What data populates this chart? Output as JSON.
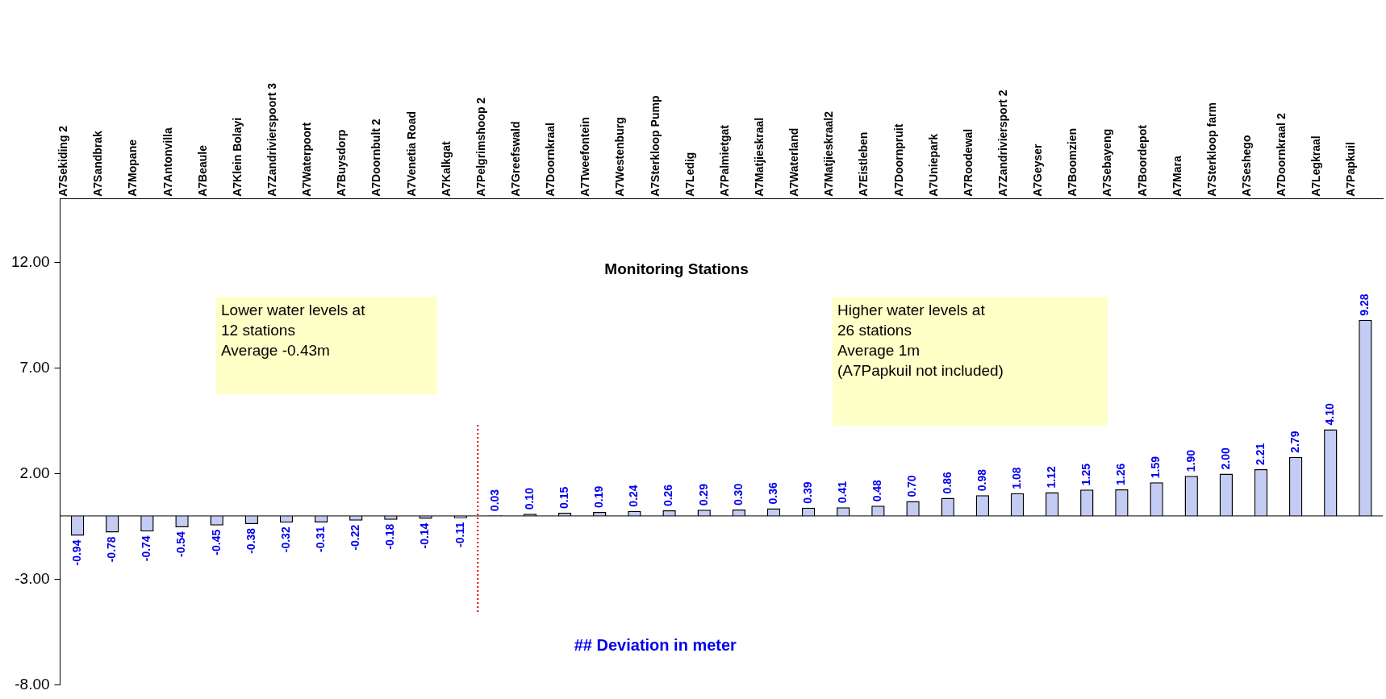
{
  "chart_data": {
    "type": "bar",
    "title": "Monitoring Stations",
    "categories": [
      "A7Sekiding 2",
      "A7Sandbrak",
      "A7Mopane",
      "A7Antonvilla",
      "A7Beaule",
      "A7Klein Bolayi",
      "A7Zandrivierspoort 3",
      "A7Waterpoort",
      "A7Buysdorp",
      "A7Doornbult 2",
      "A7Venetia Road",
      "A7Kalkgat",
      "A7Pelgrimshoop 2",
      "A7Greefswald",
      "A7Doornkraal",
      "A7Tweefontein",
      "A7Westenburg",
      "A7Sterkloop Pump",
      "A7Ledig",
      "A7Palmietgat",
      "A7Matjieskraal",
      "A7Waterland",
      "A7Matjieskraal2",
      "A7Eistleben",
      "A7Doornpruit",
      "A7Uniepark",
      "A7Roodewal",
      "A7Zandriviersport 2",
      "A7Geyser",
      "A7Boomzien",
      "A7Sebayeng",
      "A7Boordepot",
      "A7Mara",
      "A7Sterkloop farm",
      "A7Seshego",
      "A7Doornkraal 2",
      "A7Legkraal",
      "A7Papkuil"
    ],
    "values": [
      -0.94,
      -0.78,
      -0.74,
      -0.54,
      -0.45,
      -0.38,
      -0.32,
      -0.31,
      -0.22,
      -0.18,
      -0.14,
      -0.11,
      0.03,
      0.1,
      0.15,
      0.19,
      0.24,
      0.26,
      0.29,
      0.3,
      0.36,
      0.39,
      0.41,
      0.48,
      0.7,
      0.86,
      0.98,
      1.08,
      1.12,
      1.25,
      1.26,
      1.59,
      1.9,
      2.0,
      2.21,
      2.79,
      4.1,
      9.28
    ],
    "value_labels": [
      "-0.94",
      "-0.78",
      "-0.74",
      "-0.54",
      "-0.45",
      "-0.38",
      "-0.32",
      "-0.31",
      "-0.22",
      "-0.18",
      "-0.14",
      "-0.11",
      "0.03",
      "0.10",
      "0.15",
      "0.19",
      "0.24",
      "0.26",
      "0.29",
      "0.30",
      "0.36",
      "0.39",
      "0.41",
      "0.48",
      "0.70",
      "0.86",
      "0.98",
      "1.08",
      "1.12",
      "1.25",
      "1.26",
      "1.59",
      "1.90",
      "2.00",
      "2.21",
      "2.79",
      "4.10",
      "9.28"
    ],
    "color": "#c4ccf4",
    "ylim": [
      -8,
      15
    ],
    "yticks": [
      {
        "value": -8,
        "label": "-8.00"
      },
      {
        "value": -3,
        "label": "-3.00"
      },
      {
        "value": 2,
        "label": "2.00"
      },
      {
        "value": 7,
        "label": "7.00"
      },
      {
        "value": 12,
        "label": "12.00"
      }
    ],
    "grid": false,
    "legend": false,
    "ref_lines": [
      {
        "axis": "x",
        "value": "A7Pelgrimshoop 2",
        "color": "#e00000",
        "line_style": "dotted"
      }
    ],
    "annotations": [
      "Lower water levels at\n12 stations\nAverage -0.43m",
      "Higher water levels at\n26 stations\nAverage 1m\n(A7Papkuil not included)",
      "## Deviation in meter"
    ]
  }
}
